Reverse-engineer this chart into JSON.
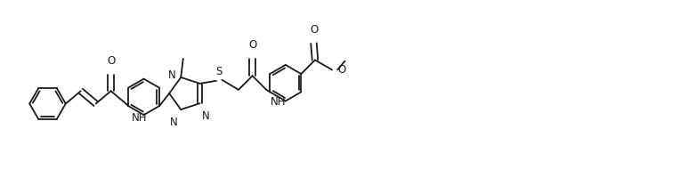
{
  "bg_color": "#ffffff",
  "line_color": "#1a1a1a",
  "line_width": 1.3,
  "font_size": 8.5,
  "fig_width": 7.82,
  "fig_height": 2.18,
  "dpi": 100,
  "xlim": [
    0,
    15.6
  ],
  "ylim": [
    0,
    4.36
  ]
}
